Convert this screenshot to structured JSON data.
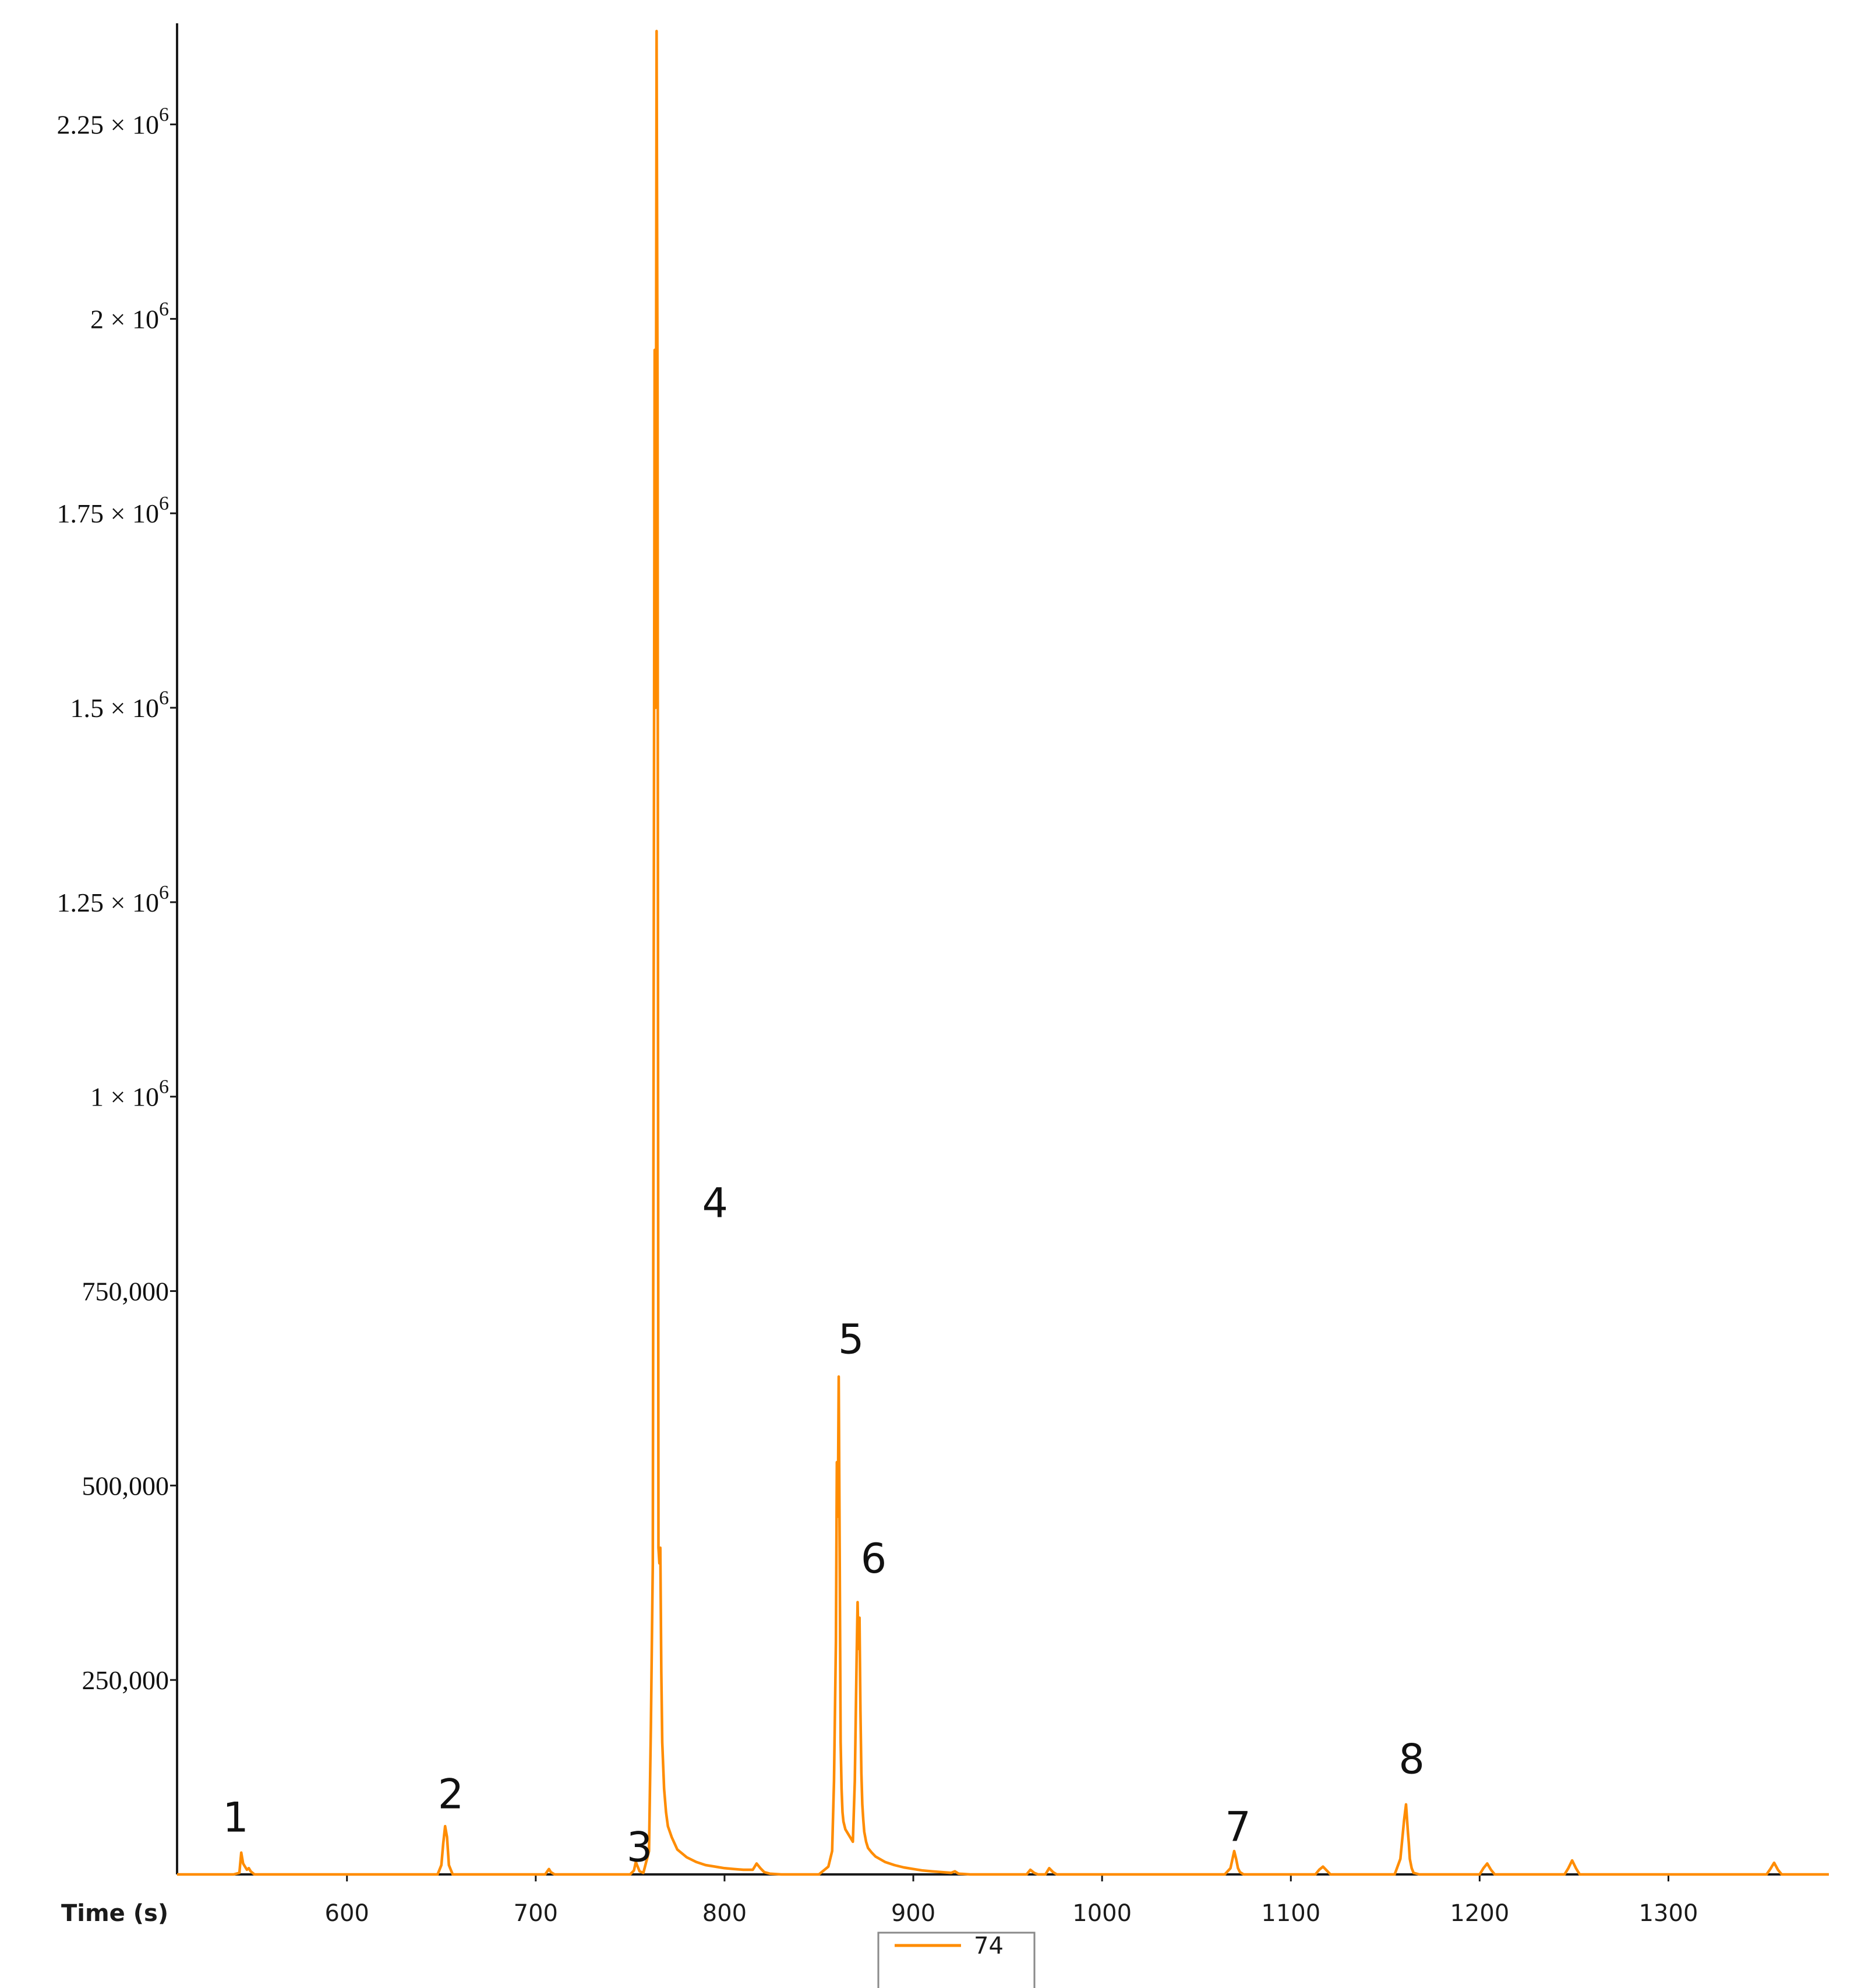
{
  "chart_data": {
    "type": "line",
    "xlabel": "Time (s)",
    "ylabel": "",
    "xlim": [
      510,
      1385
    ],
    "ylim": [
      0,
      2380000
    ],
    "grid": false,
    "legend_placement": "bottom-center",
    "color": "#ff8c00",
    "x_ticks": [
      {
        "value": 600,
        "label": "600"
      },
      {
        "value": 700,
        "label": "700"
      },
      {
        "value": 800,
        "label": "800"
      },
      {
        "value": 900,
        "label": "900"
      },
      {
        "value": 1000,
        "label": "1000"
      },
      {
        "value": 1100,
        "label": "1100"
      },
      {
        "value": 1200,
        "label": "1200"
      },
      {
        "value": 1300,
        "label": "1300"
      }
    ],
    "y_ticks": [
      {
        "value": 250000,
        "label": "250,000"
      },
      {
        "value": 500000,
        "label": "500,000"
      },
      {
        "value": 750000,
        "label": "750,000"
      },
      {
        "value": 1000000,
        "mantissa": "1",
        "base": "10",
        "exponent": "6"
      },
      {
        "value": 1250000,
        "mantissa": "1.25",
        "base": "10",
        "exponent": "6"
      },
      {
        "value": 1500000,
        "mantissa": "1.5",
        "base": "10",
        "exponent": "6"
      },
      {
        "value": 1750000,
        "mantissa": "1.75",
        "base": "10",
        "exponent": "6"
      },
      {
        "value": 2000000,
        "mantissa": "2",
        "base": "10",
        "exponent": "6"
      },
      {
        "value": 2250000,
        "mantissa": "2.25",
        "base": "10",
        "exponent": "6"
      }
    ],
    "series": [
      {
        "name": "74",
        "x": [
          510,
          540,
          543,
          544,
          545,
          547,
          548,
          549,
          551,
          556,
          648,
          650,
          651,
          652,
          653,
          654,
          656,
          705,
          707,
          708,
          710,
          750,
          752,
          753,
          754,
          755,
          757,
          760,
          761,
          762,
          763,
          763.5,
          764,
          764.5,
          765,
          765.5,
          766,
          766.5,
          767,
          768,
          769,
          770,
          772,
          775,
          780,
          785,
          790,
          795,
          800,
          805,
          810,
          815,
          817,
          819,
          821,
          824,
          830,
          850,
          855,
          857,
          858,
          859,
          859.5,
          860,
          860.5,
          861,
          861.5,
          862,
          862.5,
          863,
          864,
          866,
          868,
          869,
          870,
          870.5,
          871,
          871.5,
          872,
          872.5,
          873,
          873.5,
          874,
          875,
          876,
          878,
          880,
          885,
          890,
          895,
          900,
          905,
          910,
          915,
          920,
          922,
          924,
          930,
          960,
          962,
          964,
          966,
          970,
          972,
          974,
          976,
          1065,
          1068,
          1070,
          1071,
          1072,
          1073,
          1075,
          1080,
          1113,
          1115,
          1117,
          1119,
          1121,
          1155,
          1158,
          1160,
          1161,
          1162,
          1162.5,
          1163,
          1164,
          1165,
          1168,
          1200,
          1202,
          1204,
          1206,
          1208,
          1245,
          1247,
          1249,
          1251,
          1253,
          1352,
          1354,
          1356,
          1358,
          1360,
          1385
        ],
        "values": [
          0,
          0,
          2000,
          28000,
          14000,
          6000,
          8000,
          4000,
          0,
          0,
          0,
          12000,
          40000,
          62000,
          48000,
          12000,
          0,
          0,
          7000,
          3000,
          0,
          0,
          5000,
          16000,
          10000,
          4000,
          2000,
          30000,
          190000,
          400000,
          1960000,
          1500000,
          2370000,
          1900000,
          420000,
          400000,
          420000,
          260000,
          170000,
          110000,
          80000,
          62000,
          48000,
          32000,
          22000,
          16000,
          12000,
          10000,
          8000,
          7000,
          6000,
          6000,
          14000,
          8000,
          3000,
          1000,
          0,
          0,
          10000,
          30000,
          120000,
          300000,
          530000,
          460000,
          640000,
          420000,
          170000,
          110000,
          80000,
          68000,
          58000,
          50000,
          42000,
          120000,
          280000,
          350000,
          290000,
          330000,
          210000,
          130000,
          90000,
          70000,
          55000,
          42000,
          34000,
          28000,
          23000,
          16000,
          12000,
          9000,
          7000,
          5000,
          4000,
          3000,
          2000,
          4000,
          1000,
          0,
          0,
          6000,
          2000,
          0,
          0,
          8000,
          3000,
          0,
          0,
          8000,
          30000,
          20000,
          8000,
          3000,
          0,
          0,
          0,
          6000,
          10000,
          5000,
          0,
          0,
          20000,
          70000,
          90000,
          55000,
          40000,
          20000,
          8000,
          2000,
          0,
          0,
          8000,
          14000,
          6000,
          0,
          0,
          8000,
          18000,
          8000,
          0,
          0,
          7000,
          15000,
          6000,
          0,
          0
        ]
      }
    ],
    "annotations": [
      {
        "text": "1",
        "x": 541,
        "y": 55000
      },
      {
        "text": "2",
        "x": 655,
        "y": 85000
      },
      {
        "text": "3",
        "x": 755,
        "y": 17000
      },
      {
        "text": "4",
        "x": 795,
        "y": 845000
      },
      {
        "text": "5",
        "x": 867,
        "y": 670000
      },
      {
        "text": "6",
        "x": 879,
        "y": 388000
      },
      {
        "text": "7",
        "x": 1072,
        "y": 43000
      },
      {
        "text": "8",
        "x": 1164,
        "y": 130000
      }
    ]
  }
}
